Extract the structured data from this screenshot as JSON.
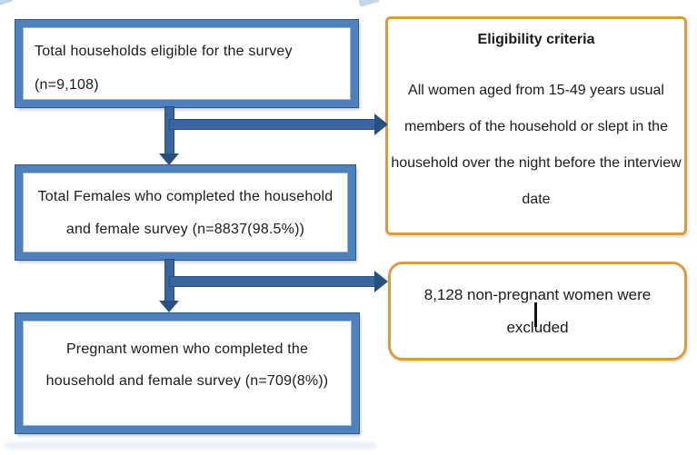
{
  "flowchart": {
    "left_boxes": [
      {
        "name": "total-households",
        "lines": [
          "Total households eligible for the survey",
          "(n=9,108)"
        ]
      },
      {
        "name": "total-females",
        "lines": [
          "Total Females who completed the household",
          "and female survey (n=8837(98.5%))"
        ]
      },
      {
        "name": "pregnant-women",
        "lines": [
          "Pregnant women who completed the",
          "household and female survey (n=709(8%))"
        ]
      }
    ],
    "right_boxes": [
      {
        "name": "eligibility-criteria",
        "title": "Eligibility criteria",
        "body": "All women aged from 15-49 years usual members of the household or slept in the household over the night before the interview date"
      },
      {
        "name": "excluded-women",
        "lines": [
          "8,128 non-pregnant women were",
          "excluded"
        ]
      }
    ],
    "colors": {
      "process_box_border": "#4f81bd",
      "process_box_border_dark": "#2f5883",
      "connector_blue": "#3a66a0",
      "arrowhead_blue": "#27507e",
      "callout_border_orange": "#dd9b3f",
      "text": "#1b1b1b",
      "background": "#ffffff"
    }
  }
}
